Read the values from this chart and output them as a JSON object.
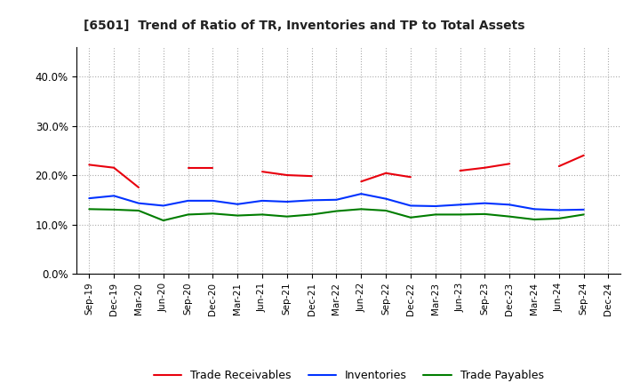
{
  "title": "[6501]  Trend of Ratio of TR, Inventories and TP to Total Assets",
  "x_labels": [
    "Sep-19",
    "Dec-19",
    "Mar-20",
    "Jun-20",
    "Sep-20",
    "Dec-20",
    "Mar-21",
    "Jun-21",
    "Sep-21",
    "Dec-21",
    "Mar-22",
    "Jun-22",
    "Sep-22",
    "Dec-22",
    "Mar-23",
    "Jun-23",
    "Sep-23",
    "Dec-23",
    "Mar-24",
    "Jun-24",
    "Sep-24",
    "Dec-24"
  ],
  "trade_receivables": [
    0.221,
    0.215,
    0.175,
    null,
    0.215,
    0.215,
    null,
    0.207,
    0.2,
    0.198,
    null,
    0.187,
    0.204,
    0.196,
    null,
    0.209,
    0.215,
    0.223,
    null,
    0.218,
    0.24,
    null
  ],
  "inventories": [
    0.153,
    0.158,
    0.143,
    0.138,
    0.148,
    0.148,
    0.141,
    0.148,
    0.146,
    0.149,
    0.15,
    0.162,
    0.152,
    0.138,
    0.137,
    0.14,
    0.143,
    0.14,
    0.131,
    0.129,
    0.13,
    null
  ],
  "trade_payables": [
    0.131,
    0.13,
    0.128,
    0.108,
    0.12,
    0.122,
    0.118,
    0.12,
    0.116,
    0.12,
    0.127,
    0.131,
    0.128,
    0.114,
    0.12,
    0.12,
    0.121,
    0.116,
    0.11,
    0.112,
    0.12,
    null
  ],
  "ylim": [
    0.0,
    0.46
  ],
  "yticks": [
    0.0,
    0.1,
    0.2,
    0.3,
    0.4
  ],
  "color_tr": "#e8000d",
  "color_inv": "#0032ff",
  "color_tp": "#007d00",
  "background_color": "#ffffff",
  "grid_color": "#aaaaaa"
}
